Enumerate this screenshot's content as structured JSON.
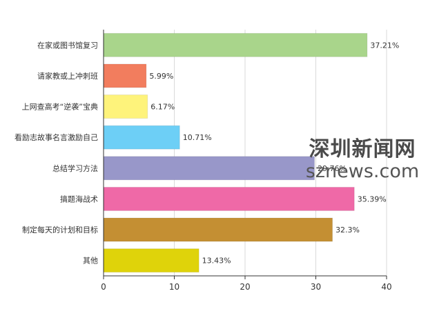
{
  "chart_data": {
    "type": "bar",
    "orientation": "horizontal",
    "categories": [
      "在家或图书馆复习",
      "请家教或上冲刺班",
      "上网查高考“逆袭”宝典",
      "看励志故事名言激励自己",
      "总结学习方法",
      "搞题海战术",
      "制定每天的计划和目标",
      "其他"
    ],
    "values": [
      37.21,
      5.99,
      6.17,
      10.71,
      29.76,
      35.39,
      32.3,
      13.43
    ],
    "value_labels": [
      "37.21%",
      "5.99%",
      "6.17%",
      "10.71%",
      "29.76%",
      "35.39%",
      "32.3%",
      "13.43%"
    ],
    "colors": [
      "#a9d58b",
      "#f27d5e",
      "#fef37b",
      "#6dcff6",
      "#9897c9",
      "#ef69a7",
      "#c48f33",
      "#dfd30a"
    ],
    "xlim": [
      0,
      40
    ],
    "xticks": [
      0,
      10,
      20,
      30,
      40
    ],
    "grid": true
  },
  "watermark": {
    "line1": "深圳新闻网",
    "line2": "sznews.com"
  }
}
